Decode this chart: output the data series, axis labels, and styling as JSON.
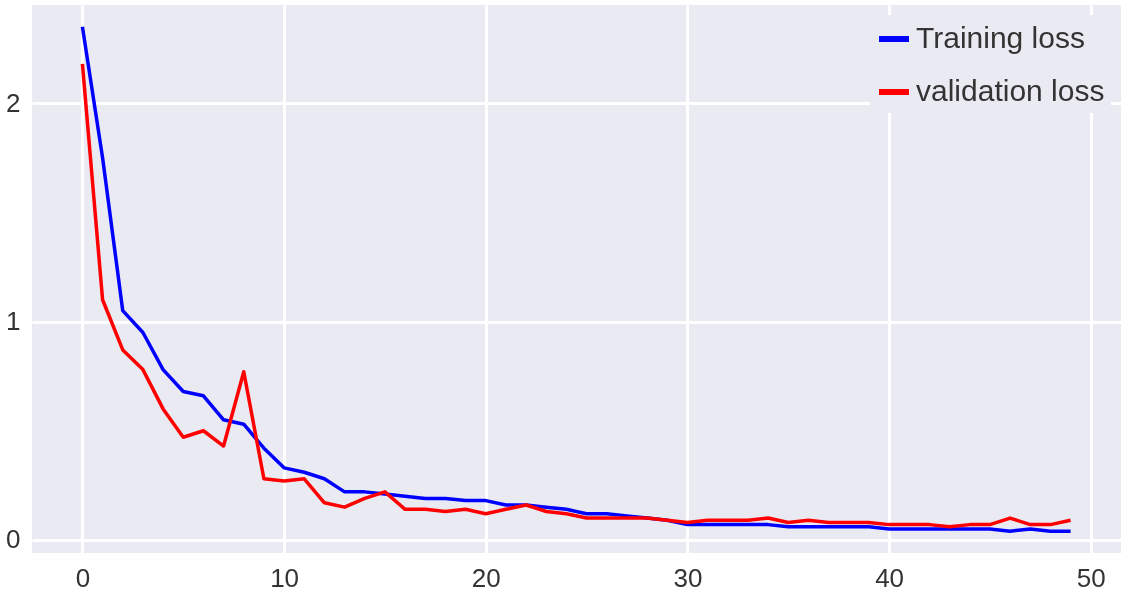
{
  "chart_data": {
    "type": "line",
    "x": [
      0,
      1,
      2,
      3,
      4,
      5,
      6,
      7,
      8,
      9,
      10,
      11,
      12,
      13,
      14,
      15,
      16,
      17,
      18,
      19,
      20,
      21,
      22,
      23,
      24,
      25,
      26,
      27,
      28,
      29,
      30,
      31,
      32,
      33,
      34,
      35,
      36,
      37,
      38,
      39,
      40,
      41,
      42,
      43,
      44,
      45,
      46,
      47,
      48,
      49
    ],
    "series": [
      {
        "name": "Training loss",
        "color": "#0000ff",
        "values": [
          2.35,
          1.75,
          1.05,
          0.95,
          0.78,
          0.68,
          0.66,
          0.55,
          0.53,
          0.42,
          0.33,
          0.31,
          0.28,
          0.22,
          0.22,
          0.21,
          0.2,
          0.19,
          0.19,
          0.18,
          0.18,
          0.16,
          0.16,
          0.15,
          0.14,
          0.12,
          0.12,
          0.11,
          0.1,
          0.09,
          0.07,
          0.07,
          0.07,
          0.07,
          0.07,
          0.06,
          0.06,
          0.06,
          0.06,
          0.06,
          0.05,
          0.05,
          0.05,
          0.05,
          0.05,
          0.05,
          0.04,
          0.05,
          0.04,
          0.04
        ]
      },
      {
        "name": "validation loss",
        "color": "#ff0000",
        "values": [
          2.18,
          1.1,
          0.87,
          0.78,
          0.6,
          0.47,
          0.5,
          0.43,
          0.77,
          0.28,
          0.27,
          0.28,
          0.17,
          0.15,
          0.19,
          0.22,
          0.14,
          0.14,
          0.13,
          0.14,
          0.12,
          0.14,
          0.16,
          0.13,
          0.12,
          0.1,
          0.1,
          0.1,
          0.1,
          0.09,
          0.08,
          0.09,
          0.09,
          0.09,
          0.1,
          0.08,
          0.09,
          0.08,
          0.08,
          0.08,
          0.07,
          0.07,
          0.07,
          0.06,
          0.07,
          0.07,
          0.1,
          0.07,
          0.07,
          0.09
        ]
      }
    ],
    "xlim": [
      -2.5,
      51.5
    ],
    "ylim": [
      -0.06,
      2.45
    ],
    "xticks": [
      0,
      10,
      20,
      30,
      40,
      50
    ],
    "yticks": [
      0,
      1,
      2
    ],
    "grid": true,
    "legend": "top right",
    "line_style": "solid",
    "marker": "none"
  }
}
